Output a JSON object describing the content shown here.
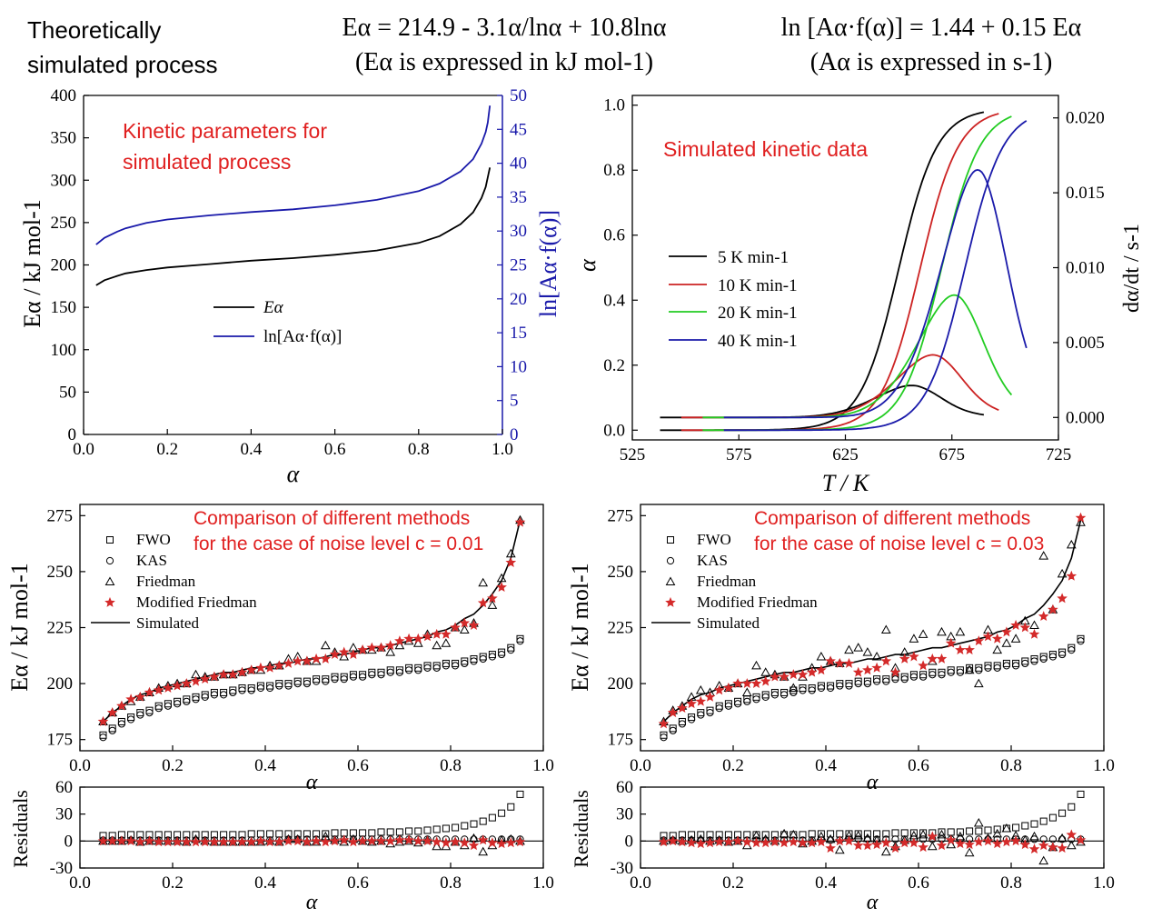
{
  "header": {
    "left_line1": "Theoretically",
    "left_line2": "simulated process",
    "mid_line1": "Eα = 214.9 - 3.1α/lnα + 10.8lnα",
    "mid_line2": "(Eα is expressed in kJ mol-1)",
    "right_line1": "ln [Aα·f(α)] = 1.44 + 0.15 Eα",
    "right_line2": "(Aα is expressed in s-1)"
  },
  "colors": {
    "black": "#000000",
    "red": "#cc2222",
    "green": "#22cc22",
    "blue": "#1a1aaa",
    "star_red": "#d42a2a",
    "annotation_red": "#e02020"
  },
  "chart_data": [
    {
      "type": "line",
      "annotation": "Kinetic parameters for simulated process",
      "xlabel": "α",
      "ylabel": "Eα / kJ mol-1",
      "ylabel_right": "ln[Aα·f(α)]",
      "xlim": [
        0.0,
        1.0
      ],
      "ylim": [
        0,
        400
      ],
      "ylim_right": [
        0,
        50
      ],
      "xticks": [
        "0.0",
        "0.2",
        "0.4",
        "0.6",
        "0.8",
        "1.0"
      ],
      "yticks": [
        "0",
        "50",
        "100",
        "150",
        "200",
        "250",
        "300",
        "350",
        "400"
      ],
      "yticks_right": [
        "0",
        "5",
        "10",
        "15",
        "20",
        "25",
        "30",
        "35",
        "40",
        "45",
        "50"
      ],
      "legend_placement": "center-left",
      "series": [
        {
          "name": "Eα",
          "axis": "left",
          "color": "#000000",
          "x": [
            0.03,
            0.05,
            0.08,
            0.1,
            0.15,
            0.2,
            0.3,
            0.4,
            0.5,
            0.6,
            0.7,
            0.8,
            0.85,
            0.9,
            0.93,
            0.95,
            0.96,
            0.97
          ],
          "y": [
            176,
            182,
            187,
            190,
            194,
            197,
            201,
            205,
            208,
            212,
            217,
            226,
            234,
            248,
            262,
            279,
            292,
            315
          ]
        },
        {
          "name": "ln[Aα·f(α)]",
          "axis": "right",
          "color": "#1a1aaa",
          "x": [
            0.03,
            0.05,
            0.08,
            0.1,
            0.15,
            0.2,
            0.3,
            0.4,
            0.5,
            0.6,
            0.7,
            0.8,
            0.85,
            0.9,
            0.93,
            0.95,
            0.96,
            0.965,
            0.97
          ],
          "y": [
            28.0,
            29.0,
            29.9,
            30.4,
            31.2,
            31.7,
            32.3,
            32.8,
            33.2,
            33.8,
            34.6,
            35.9,
            37.0,
            38.8,
            40.6,
            42.9,
            44.6,
            46.0,
            48.5
          ]
        }
      ]
    },
    {
      "type": "line",
      "annotation": "Simulated kinetic data",
      "xlabel": "T / K",
      "ylabel": "α",
      "ylabel_right": "dα/dt / s-1",
      "xlim": [
        525,
        725
      ],
      "ylim": [
        0.0,
        1.0
      ],
      "ylim_right": [
        0.0,
        0.02
      ],
      "xticks": [
        "525",
        "575",
        "625",
        "675",
        "725"
      ],
      "yticks": [
        "0.0",
        "0.2",
        "0.4",
        "0.6",
        "0.8",
        "1.0"
      ],
      "yticks_right": [
        "0.000",
        "0.005",
        "0.010",
        "0.015",
        "0.020"
      ],
      "legend_placement": "center-left",
      "series": [
        {
          "name": "5 K min-1",
          "color": "#000000",
          "T0": 650,
          "s": 9,
          "Tstart": 538,
          "Tend": 690
        },
        {
          "name": "10 K min-1",
          "color": "#cc2222",
          "T0": 660,
          "s": 9,
          "Tstart": 548,
          "Tend": 697
        },
        {
          "name": "20 K min-1",
          "color": "#22cc22",
          "T0": 670,
          "s": 9,
          "Tstart": 558,
          "Tend": 703
        },
        {
          "name": "40 K min-1",
          "color": "#1a1aaa",
          "T0": 681,
          "s": 9,
          "Tstart": 568,
          "Tend": 710
        }
      ],
      "peak_rates": [
        0.0023,
        0.0045,
        0.0088,
        0.0178
      ]
    },
    {
      "type": "scatter",
      "annotation_line1": "Comparison of different methods",
      "annotation_line2": "for the case of noise level c = 0.01",
      "xlabel": "α",
      "ylabel": "Eα / kJ mol-1",
      "xlim": [
        0.0,
        1.0
      ],
      "ylim": [
        170,
        280
      ],
      "xticks": [
        "0.0",
        "0.2",
        "0.4",
        "0.6",
        "0.8",
        "1.0"
      ],
      "yticks": [
        "175",
        "200",
        "225",
        "250",
        "275"
      ],
      "legend_placement": "top-left",
      "legend": [
        "FWO",
        "KAS",
        "Friedman",
        "Modified Friedman",
        "Simulated"
      ],
      "alpha": [
        0.05,
        0.07,
        0.09,
        0.11,
        0.13,
        0.15,
        0.17,
        0.19,
        0.21,
        0.23,
        0.25,
        0.27,
        0.29,
        0.31,
        0.33,
        0.35,
        0.37,
        0.39,
        0.41,
        0.43,
        0.45,
        0.47,
        0.49,
        0.51,
        0.53,
        0.55,
        0.57,
        0.59,
        0.61,
        0.63,
        0.65,
        0.67,
        0.69,
        0.71,
        0.73,
        0.75,
        0.77,
        0.79,
        0.81,
        0.83,
        0.85,
        0.87,
        0.89,
        0.91,
        0.93,
        0.95
      ],
      "simulated": [
        183,
        187,
        190,
        193,
        195,
        196,
        198,
        199,
        200,
        201,
        202,
        203,
        204,
        205,
        205,
        206,
        207,
        207,
        208,
        209,
        209,
        210,
        211,
        211,
        212,
        213,
        213,
        214,
        215,
        216,
        216,
        217,
        218,
        219,
        220,
        221,
        223,
        224,
        226,
        229,
        231,
        235,
        240,
        246,
        256,
        273
      ],
      "fwo": [
        177,
        180,
        183,
        185,
        187,
        188,
        190,
        191,
        192,
        193,
        194,
        195,
        196,
        196,
        197,
        198,
        198,
        199,
        199,
        200,
        200,
        201,
        201,
        202,
        202,
        203,
        203,
        204,
        204,
        205,
        205,
        206,
        206,
        207,
        207,
        208,
        208,
        209,
        209,
        210,
        211,
        212,
        213,
        214,
        216,
        220
      ],
      "kas": [
        176,
        179,
        182,
        184,
        186,
        187,
        189,
        190,
        191,
        192,
        193,
        194,
        195,
        195,
        196,
        197,
        197,
        198,
        198,
        199,
        199,
        200,
        200,
        201,
        201,
        202,
        202,
        203,
        203,
        204,
        204,
        205,
        205,
        206,
        206,
        207,
        207,
        208,
        208,
        209,
        210,
        211,
        212,
        213,
        215,
        219
      ],
      "friedman": [
        183,
        187,
        190,
        192,
        194,
        196,
        198,
        199,
        200,
        200,
        204,
        203,
        203,
        204,
        204,
        205,
        206,
        206,
        208,
        208,
        211,
        212,
        210,
        210,
        217,
        214,
        212,
        216,
        215,
        215,
        216,
        214,
        217,
        219,
        218,
        222,
        217,
        218,
        225,
        224,
        227,
        245,
        235,
        247,
        258,
        273
      ],
      "modified_friedman": [
        183,
        187,
        190,
        193,
        194,
        196,
        197,
        198,
        199,
        200,
        201,
        202,
        203,
        204,
        204,
        205,
        206,
        207,
        207,
        208,
        209,
        210,
        210,
        211,
        211,
        213,
        214,
        213,
        215,
        216,
        216,
        217,
        219,
        220,
        220,
        221,
        222,
        222,
        225,
        227,
        226,
        236,
        238,
        243,
        254,
        272
      ],
      "residuals_ylim": [
        -30,
        60
      ],
      "residuals_yticks": [
        "-30",
        "0",
        "30",
        "60"
      ],
      "residuals_ylabel": "Residuals",
      "residuals_xlabel": "α",
      "residuals": {
        "fwo": [
          6,
          6,
          7,
          7,
          7,
          7,
          7,
          7,
          7,
          7,
          7,
          7,
          7,
          7,
          7,
          7,
          8,
          8,
          8,
          8,
          8,
          8,
          8,
          8,
          8,
          9,
          9,
          9,
          9,
          9,
          10,
          10,
          10,
          11,
          11,
          12,
          13,
          14,
          15,
          17,
          19,
          22,
          26,
          31,
          38,
          52
        ],
        "kas": [
          1,
          1,
          1,
          1,
          1,
          1,
          1,
          1,
          1,
          1,
          1,
          1,
          1,
          1,
          1,
          1,
          1,
          1,
          1,
          1,
          2,
          2,
          2,
          2,
          2,
          2,
          2,
          2,
          2,
          2,
          2,
          2,
          2,
          2,
          2,
          2,
          2,
          2,
          2,
          2,
          2,
          2,
          2,
          2,
          2,
          2
        ],
        "friedman": [
          0,
          0,
          0,
          1,
          -1,
          0,
          0,
          0,
          0,
          -1,
          2,
          0,
          -1,
          -1,
          -1,
          -1,
          -1,
          -1,
          0,
          -1,
          2,
          2,
          -1,
          -1,
          5,
          1,
          -1,
          2,
          0,
          -1,
          0,
          -3,
          -1,
          0,
          -2,
          1,
          -6,
          -6,
          -1,
          -5,
          3,
          -12,
          -5,
          1,
          2,
          0
        ],
        "modified_friedman": [
          0,
          0,
          0,
          0,
          -1,
          0,
          -1,
          -1,
          -1,
          -1,
          -1,
          -1,
          -1,
          -1,
          -1,
          -1,
          -1,
          0,
          -1,
          -1,
          0,
          0,
          -1,
          0,
          -1,
          0,
          1,
          -1,
          0,
          0,
          0,
          0,
          1,
          1,
          0,
          0,
          -1,
          -2,
          -1,
          -2,
          -5,
          1,
          -2,
          -3,
          -2,
          -1
        ]
      }
    },
    {
      "type": "scatter",
      "annotation_line1": "Comparison of different methods",
      "annotation_line2": "for the case of noise level c = 0.03",
      "xlabel": "α",
      "ylabel": "Eα / kJ mol-1",
      "xlim": [
        0.0,
        1.0
      ],
      "ylim": [
        170,
        280
      ],
      "xticks": [
        "0.0",
        "0.2",
        "0.4",
        "0.6",
        "0.8",
        "1.0"
      ],
      "yticks": [
        "175",
        "200",
        "225",
        "250",
        "275"
      ],
      "legend_placement": "top-left",
      "legend": [
        "FWO",
        "KAS",
        "Friedman",
        "Modified Friedman",
        "Simulated"
      ],
      "alpha": [
        0.05,
        0.07,
        0.09,
        0.11,
        0.13,
        0.15,
        0.17,
        0.19,
        0.21,
        0.23,
        0.25,
        0.27,
        0.29,
        0.31,
        0.33,
        0.35,
        0.37,
        0.39,
        0.41,
        0.43,
        0.45,
        0.47,
        0.49,
        0.51,
        0.53,
        0.55,
        0.57,
        0.59,
        0.61,
        0.63,
        0.65,
        0.67,
        0.69,
        0.71,
        0.73,
        0.75,
        0.77,
        0.79,
        0.81,
        0.83,
        0.85,
        0.87,
        0.89,
        0.91,
        0.93,
        0.95
      ],
      "simulated": [
        183,
        187,
        190,
        193,
        195,
        196,
        198,
        199,
        200,
        201,
        202,
        203,
        204,
        205,
        205,
        206,
        207,
        207,
        208,
        209,
        209,
        210,
        211,
        211,
        212,
        213,
        213,
        214,
        215,
        216,
        216,
        217,
        218,
        219,
        220,
        221,
        223,
        224,
        226,
        229,
        231,
        235,
        240,
        246,
        256,
        273
      ],
      "fwo": [
        177,
        180,
        183,
        185,
        187,
        188,
        190,
        191,
        192,
        193,
        194,
        195,
        196,
        196,
        197,
        198,
        198,
        199,
        199,
        200,
        200,
        201,
        201,
        202,
        202,
        203,
        203,
        204,
        204,
        205,
        205,
        206,
        206,
        207,
        207,
        208,
        208,
        209,
        209,
        210,
        211,
        212,
        213,
        214,
        216,
        220
      ],
      "kas": [
        176,
        179,
        182,
        184,
        186,
        187,
        189,
        190,
        191,
        192,
        193,
        194,
        195,
        195,
        196,
        197,
        197,
        198,
        198,
        199,
        199,
        200,
        200,
        201,
        201,
        202,
        202,
        203,
        203,
        204,
        204,
        205,
        205,
        206,
        206,
        207,
        207,
        208,
        208,
        209,
        210,
        211,
        212,
        213,
        215,
        219
      ],
      "friedman": [
        183,
        188,
        190,
        194,
        197,
        196,
        199,
        198,
        200,
        196,
        208,
        205,
        204,
        203,
        198,
        203,
        207,
        212,
        210,
        209,
        215,
        216,
        214,
        212,
        224,
        207,
        214,
        220,
        222,
        210,
        223,
        221,
        223,
        206,
        200,
        224,
        215,
        218,
        220,
        228,
        226,
        257,
        233,
        249,
        262,
        272
      ],
      "modified_friedman": [
        182,
        187,
        189,
        191,
        192,
        194,
        197,
        198,
        200,
        200,
        200,
        201,
        203,
        203,
        204,
        204,
        205,
        206,
        210,
        209,
        209,
        205,
        206,
        207,
        210,
        205,
        211,
        212,
        208,
        211,
        211,
        218,
        215,
        215,
        219,
        221,
        220,
        223,
        226,
        225,
        222,
        230,
        233,
        238,
        248,
        274
      ],
      "residuals_ylim": [
        -30,
        60
      ],
      "residuals_yticks": [
        "-30",
        "0",
        "30",
        "60"
      ],
      "residuals_ylabel": "Residuals",
      "residuals_xlabel": "α",
      "residuals": {
        "fwo": [
          6,
          6,
          7,
          7,
          7,
          7,
          7,
          7,
          7,
          7,
          7,
          7,
          7,
          7,
          7,
          7,
          8,
          8,
          8,
          8,
          8,
          8,
          8,
          8,
          8,
          9,
          9,
          9,
          9,
          9,
          10,
          10,
          10,
          11,
          11,
          12,
          13,
          14,
          15,
          17,
          19,
          22,
          26,
          31,
          38,
          52
        ],
        "kas": [
          1,
          1,
          1,
          1,
          1,
          1,
          1,
          1,
          1,
          1,
          1,
          1,
          1,
          1,
          1,
          1,
          1,
          1,
          1,
          1,
          2,
          2,
          2,
          2,
          2,
          2,
          2,
          2,
          2,
          2,
          2,
          2,
          2,
          2,
          2,
          2,
          2,
          2,
          2,
          2,
          2,
          2,
          2,
          2,
          2,
          2
        ],
        "friedman": [
          0,
          1,
          0,
          1,
          2,
          0,
          1,
          -1,
          0,
          -5,
          6,
          2,
          0,
          8,
          7,
          -3,
          0,
          5,
          2,
          -10,
          6,
          6,
          3,
          1,
          -12,
          -6,
          1,
          6,
          7,
          -6,
          7,
          -4,
          5,
          -13,
          20,
          3,
          8,
          14,
          6,
          1,
          5,
          -22,
          -7,
          3,
          -5,
          -1
        ],
        "modified_friedman": [
          -1,
          0,
          -1,
          -2,
          -3,
          -2,
          -1,
          -1,
          0,
          -1,
          -2,
          -2,
          -1,
          -2,
          -1,
          -2,
          -2,
          -1,
          -8,
          0,
          0,
          -5,
          -5,
          -4,
          -2,
          -8,
          -2,
          -2,
          -7,
          5,
          -5,
          1,
          -3,
          -4,
          -1,
          0,
          -3,
          -1,
          0,
          -4,
          -9,
          -5,
          -7,
          -8,
          7,
          1
        ]
      }
    }
  ]
}
